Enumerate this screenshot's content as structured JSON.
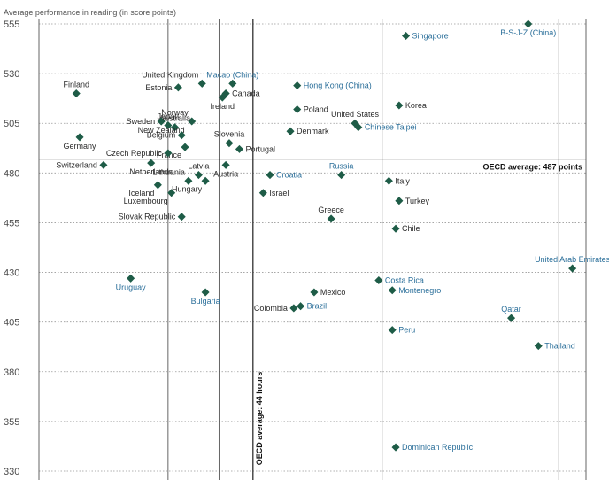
{
  "chart_data": {
    "type": "scatter",
    "title": "",
    "ylabel": "Average performance in reading (in score points)",
    "xlabel": "",
    "ylim": [
      330,
      555
    ],
    "y_ticks": [
      330,
      355,
      380,
      405,
      430,
      455,
      480,
      505,
      530,
      555
    ],
    "x_gridlines": [
      -1.5,
      0,
      1,
      4.8,
      10
    ],
    "grid": true,
    "oecd_average_line": {
      "label": "OECD average: 487 points",
      "value": 487
    },
    "hours_average_line": {
      "label": "OECD average: 44 hours",
      "value": 1.0
    },
    "colors": {
      "point": "#1e5c47",
      "text_dark": "#2b2b2b",
      "text_blue": "#2b6f9a",
      "grid": "#999999"
    },
    "points": [
      {
        "name": "B-S-J-Z (China)",
        "x": 9.1,
        "y": 555,
        "label_color": "blue",
        "label_pos": "below"
      },
      {
        "name": "Singapore",
        "x": 5.5,
        "y": 549,
        "label_color": "blue",
        "label_pos": "right"
      },
      {
        "name": "Finland",
        "x": -4.2,
        "y": 520,
        "label_color": "dark",
        "label_pos": "above"
      },
      {
        "name": "Macao (China)",
        "x": 0.4,
        "y": 525,
        "label_color": "blue",
        "label_pos": "above"
      },
      {
        "name": "Hong Kong (China)",
        "x": 2.3,
        "y": 524,
        "label_color": "blue",
        "label_pos": "right"
      },
      {
        "name": "United Kingdom",
        "x": -0.5,
        "y": 525,
        "label_color": "dark",
        "label_pos": "above-left"
      },
      {
        "name": "Estonia",
        "x": -1.2,
        "y": 523,
        "label_color": "dark",
        "label_pos": "left"
      },
      {
        "name": "Canada",
        "x": 0.2,
        "y": 520,
        "label_color": "dark",
        "label_pos": "right"
      },
      {
        "name": "Ireland",
        "x": 0.1,
        "y": 518,
        "label_color": "dark",
        "label_pos": "below"
      },
      {
        "name": "Norway",
        "x": -0.8,
        "y": 506,
        "label_color": "dark",
        "label_pos": "above-left"
      },
      {
        "name": "Poland",
        "x": 2.3,
        "y": 512,
        "label_color": "dark",
        "label_pos": "right"
      },
      {
        "name": "Korea",
        "x": 5.3,
        "y": 514,
        "label_color": "dark",
        "label_pos": "right"
      },
      {
        "name": "Sweden",
        "x": -1.7,
        "y": 506,
        "label_color": "dark",
        "label_pos": "left"
      },
      {
        "name": "Japan",
        "x": -1.5,
        "y": 504,
        "label_color": "dark",
        "label_pos": "above"
      },
      {
        "name": "Australia",
        "x": -1.3,
        "y": 503,
        "label_color": "dark",
        "label_pos": "above"
      },
      {
        "name": "United States",
        "x": 4.0,
        "y": 505,
        "label_color": "dark",
        "label_pos": "above"
      },
      {
        "name": "Chinese Taipei",
        "x": 4.1,
        "y": 503,
        "label_color": "blue",
        "label_pos": "right"
      },
      {
        "name": "Denmark",
        "x": 2.1,
        "y": 501,
        "label_color": "dark",
        "label_pos": "right"
      },
      {
        "name": "Slovenia",
        "x": 0.3,
        "y": 495,
        "label_color": "dark",
        "label_pos": "above"
      },
      {
        "name": "New Zealand",
        "x": -1.7,
        "y": 506,
        "label_color": "dark",
        "label_pos": "below"
      },
      {
        "name": "Belgium",
        "x": -1.1,
        "y": 499,
        "label_color": "dark",
        "label_pos": "left"
      },
      {
        "name": "Germany",
        "x": -4.1,
        "y": 498,
        "label_color": "dark",
        "label_pos": "below"
      },
      {
        "name": "France",
        "x": -1.0,
        "y": 493,
        "label_color": "dark",
        "label_pos": "below-left"
      },
      {
        "name": "Portugal",
        "x": 0.6,
        "y": 492,
        "label_color": "dark",
        "label_pos": "right"
      },
      {
        "name": "Czech Republic",
        "x": -1.5,
        "y": 490,
        "label_color": "dark",
        "label_pos": "left"
      },
      {
        "name": "Switzerland",
        "x": -3.4,
        "y": 484,
        "label_color": "dark",
        "label_pos": "left"
      },
      {
        "name": "Netherlands",
        "x": -2.0,
        "y": 485,
        "label_color": "dark",
        "label_pos": "below"
      },
      {
        "name": "Latvia",
        "x": -0.6,
        "y": 479,
        "label_color": "dark",
        "label_pos": "above"
      },
      {
        "name": "Lithuania",
        "x": -0.9,
        "y": 476,
        "label_color": "dark",
        "label_pos": "above-left"
      },
      {
        "name": "Austria",
        "x": 0.2,
        "y": 484,
        "label_color": "dark",
        "label_pos": "below"
      },
      {
        "name": "Croatia",
        "x": 1.5,
        "y": 479,
        "label_color": "blue",
        "label_pos": "right"
      },
      {
        "name": "Russia",
        "x": 3.6,
        "y": 479,
        "label_color": "blue",
        "label_pos": "above"
      },
      {
        "name": "Italy",
        "x": 5.0,
        "y": 476,
        "label_color": "dark",
        "label_pos": "right"
      },
      {
        "name": "Iceland",
        "x": -1.8,
        "y": 474,
        "label_color": "dark",
        "label_pos": "below-left"
      },
      {
        "name": "Hungary",
        "x": -0.4,
        "y": 476,
        "label_color": "dark",
        "label_pos": "below-left"
      },
      {
        "name": "Luxembourg",
        "x": -1.4,
        "y": 470,
        "label_color": "dark",
        "label_pos": "below-left"
      },
      {
        "name": "Israel",
        "x": 1.3,
        "y": 470,
        "label_color": "dark",
        "label_pos": "right"
      },
      {
        "name": "Turkey",
        "x": 5.3,
        "y": 466,
        "label_color": "dark",
        "label_pos": "right"
      },
      {
        "name": "Greece",
        "x": 3.3,
        "y": 457,
        "label_color": "dark",
        "label_pos": "above"
      },
      {
        "name": "Slovak Republic",
        "x": -1.1,
        "y": 458,
        "label_color": "dark",
        "label_pos": "left"
      },
      {
        "name": "Chile",
        "x": 5.2,
        "y": 452,
        "label_color": "dark",
        "label_pos": "right"
      },
      {
        "name": "United Arab Emirates",
        "x": 10.4,
        "y": 432,
        "label_color": "blue",
        "label_pos": "above"
      },
      {
        "name": "Uruguay",
        "x": -2.6,
        "y": 427,
        "label_color": "blue",
        "label_pos": "below"
      },
      {
        "name": "Costa Rica",
        "x": 4.7,
        "y": 426,
        "label_color": "blue",
        "label_pos": "right"
      },
      {
        "name": "Mexico",
        "x": 2.8,
        "y": 420,
        "label_color": "dark",
        "label_pos": "right"
      },
      {
        "name": "Montenegro",
        "x": 5.1,
        "y": 421,
        "label_color": "blue",
        "label_pos": "right"
      },
      {
        "name": "Bulgaria",
        "x": -0.4,
        "y": 420,
        "label_color": "blue",
        "label_pos": "below"
      },
      {
        "name": "Colombia",
        "x": 2.2,
        "y": 412,
        "label_color": "dark",
        "label_pos": "left"
      },
      {
        "name": "Brazil",
        "x": 2.4,
        "y": 413,
        "label_color": "blue",
        "label_pos": "right"
      },
      {
        "name": "Qatar",
        "x": 8.6,
        "y": 407,
        "label_color": "blue",
        "label_pos": "above"
      },
      {
        "name": "Peru",
        "x": 5.1,
        "y": 401,
        "label_color": "blue",
        "label_pos": "right"
      },
      {
        "name": "Thailand",
        "x": 9.4,
        "y": 393,
        "label_color": "blue",
        "label_pos": "right"
      },
      {
        "name": "Dominican Republic",
        "x": 5.2,
        "y": 342,
        "label_color": "blue",
        "label_pos": "right"
      }
    ]
  }
}
